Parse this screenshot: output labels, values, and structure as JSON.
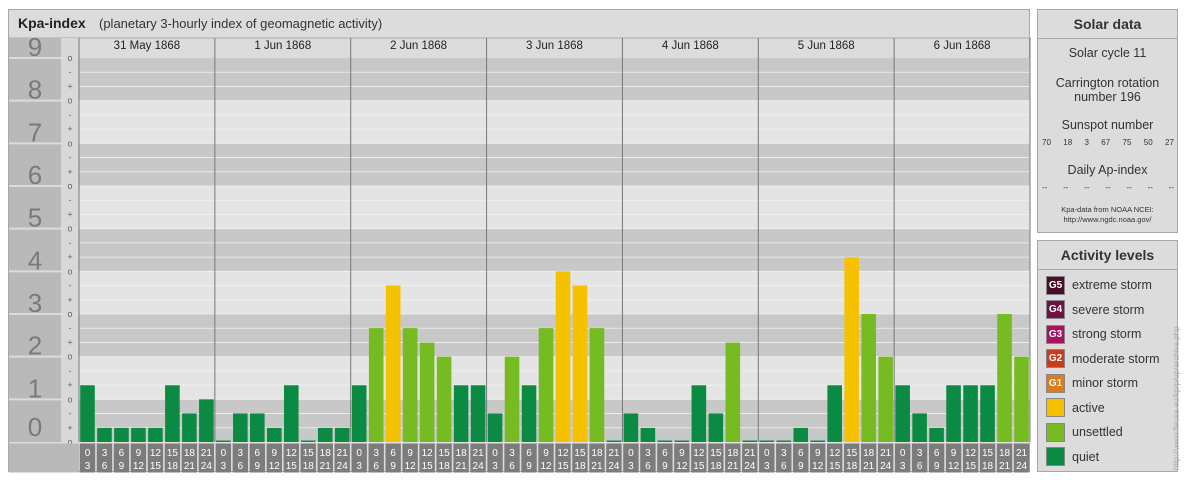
{
  "header": {
    "title": "Kpa-index",
    "subtitle": "(planetary 3-hourly index of geomagnetic activity)"
  },
  "solar": {
    "title": "Solar data",
    "cycle": "Solar cycle 11",
    "carrington_line1": "Carrington rotation",
    "carrington_line2": "number 196",
    "sunspot_title": "Sunspot number",
    "sunspot_values": [
      "70",
      "18",
      "3",
      "67",
      "75",
      "50",
      "27"
    ],
    "ap_title": "Daily Ap-index",
    "ap_values": [
      "--",
      "--",
      "--",
      "--",
      "--",
      "--",
      "--"
    ],
    "source_line1": "Kpa-data from NOAA NCEI:",
    "source_line2": "http://www.ngdc.noaa.gov/"
  },
  "activity": {
    "title": "Activity levels",
    "levels": [
      {
        "badge": "G5",
        "label": "extreme storm",
        "color": "#4a0d2a"
      },
      {
        "badge": "G4",
        "label": "severe storm",
        "color": "#6e1143"
      },
      {
        "badge": "G3",
        "label": "strong storm",
        "color": "#a8135e"
      },
      {
        "badge": "G2",
        "label": "moderate storm",
        "color": "#cc3b1c"
      },
      {
        "badge": "G1",
        "label": "minor storm",
        "color": "#e07b1a"
      },
      {
        "badge": "",
        "label": "active",
        "color": "#f6c200"
      },
      {
        "badge": "",
        "label": "unsettled",
        "color": "#76bb22"
      },
      {
        "badge": "",
        "label": "quiet",
        "color": "#0b8a44"
      }
    ]
  },
  "watermark": "http://www.fleuse.eu/kp/p/up/archive.php",
  "chart_data": {
    "type": "bar",
    "ylim": [
      0,
      9
    ],
    "y_ticks": [
      "0",
      "1",
      "2",
      "3",
      "4",
      "5",
      "6",
      "7",
      "8",
      "9"
    ],
    "sub_ticks": [
      "+",
      "o",
      "-"
    ],
    "days": [
      "31 May 1868",
      "1 Jun 1868",
      "2 Jun 1868",
      "3 Jun 1868",
      "4 Jun 1868",
      "5 Jun 1868",
      "6 Jun 1868"
    ],
    "slot_top_labels": [
      "0",
      "3",
      "6",
      "9",
      "12",
      "15",
      "18",
      "21"
    ],
    "slot_bottom_labels": [
      "3",
      "6",
      "9",
      "12",
      "15",
      "18",
      "21",
      "24"
    ],
    "colors": {
      "quiet": "#0b8a44",
      "unsettled": "#76bb22",
      "active": "#f6c200"
    },
    "values": [
      [
        1.33,
        0.33,
        0.33,
        0.33,
        0.33,
        1.33,
        0.67,
        1.0
      ],
      [
        0.0,
        0.67,
        0.67,
        0.33,
        1.33,
        0.0,
        0.33,
        0.33
      ],
      [
        1.33,
        2.67,
        3.67,
        2.67,
        2.33,
        2.0,
        1.33,
        1.33
      ],
      [
        0.67,
        2.0,
        1.33,
        2.67,
        4.0,
        3.67,
        2.67,
        0.0
      ],
      [
        0.67,
        0.33,
        0.0,
        0.0,
        1.33,
        0.67,
        2.33,
        0.0
      ],
      [
        0.0,
        0.0,
        0.33,
        0.0,
        1.33,
        4.33,
        3.0,
        2.0
      ],
      [
        1.33,
        0.67,
        0.33,
        1.33,
        1.33,
        1.33,
        3.0,
        2.0
      ]
    ],
    "levels": [
      [
        "quiet",
        "quiet",
        "quiet",
        "quiet",
        "quiet",
        "quiet",
        "quiet",
        "quiet"
      ],
      [
        "quiet",
        "quiet",
        "quiet",
        "quiet",
        "quiet",
        "quiet",
        "quiet",
        "quiet"
      ],
      [
        "quiet",
        "unsettled",
        "active",
        "unsettled",
        "unsettled",
        "unsettled",
        "quiet",
        "quiet"
      ],
      [
        "quiet",
        "unsettled",
        "quiet",
        "unsettled",
        "active",
        "active",
        "unsettled",
        "quiet"
      ],
      [
        "quiet",
        "quiet",
        "quiet",
        "quiet",
        "quiet",
        "quiet",
        "unsettled",
        "quiet"
      ],
      [
        "quiet",
        "quiet",
        "quiet",
        "quiet",
        "quiet",
        "active",
        "unsettled",
        "unsettled"
      ],
      [
        "quiet",
        "quiet",
        "quiet",
        "quiet",
        "quiet",
        "quiet",
        "unsettled",
        "unsettled"
      ]
    ]
  }
}
